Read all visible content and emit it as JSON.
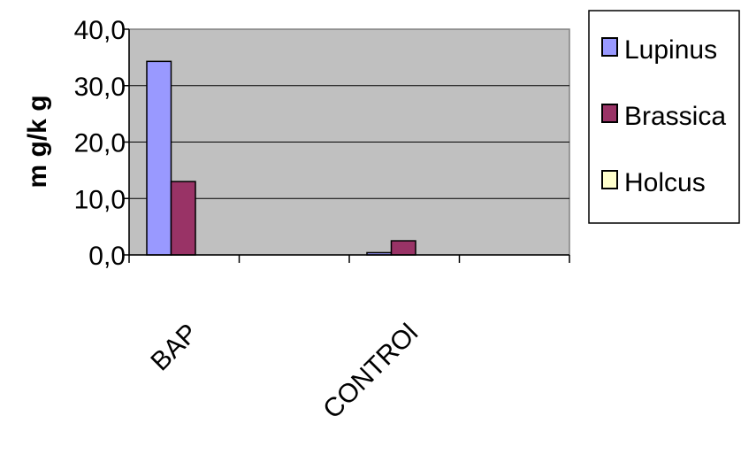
{
  "chart_data": {
    "type": "bar",
    "title": "",
    "xlabel": "",
    "ylabel": "m g/k g",
    "categories": [
      "BAP",
      "CONTROl"
    ],
    "series": [
      {
        "name": "Lupinus",
        "color": "#9999FF",
        "values": [
          34.3,
          0.4
        ]
      },
      {
        "name": "Brassica",
        "color": "#993366",
        "values": [
          13.0,
          2.5
        ]
      },
      {
        "name": "Holcus",
        "color": "#FFFFCC",
        "values": [
          0,
          0
        ]
      }
    ],
    "ylim": [
      0,
      40
    ],
    "yticks": [
      "0,0",
      "10,0",
      "20,0",
      "30,0",
      "40,0"
    ],
    "grid": true,
    "legend_position": "right",
    "plot_background": "#C0C0C0"
  }
}
